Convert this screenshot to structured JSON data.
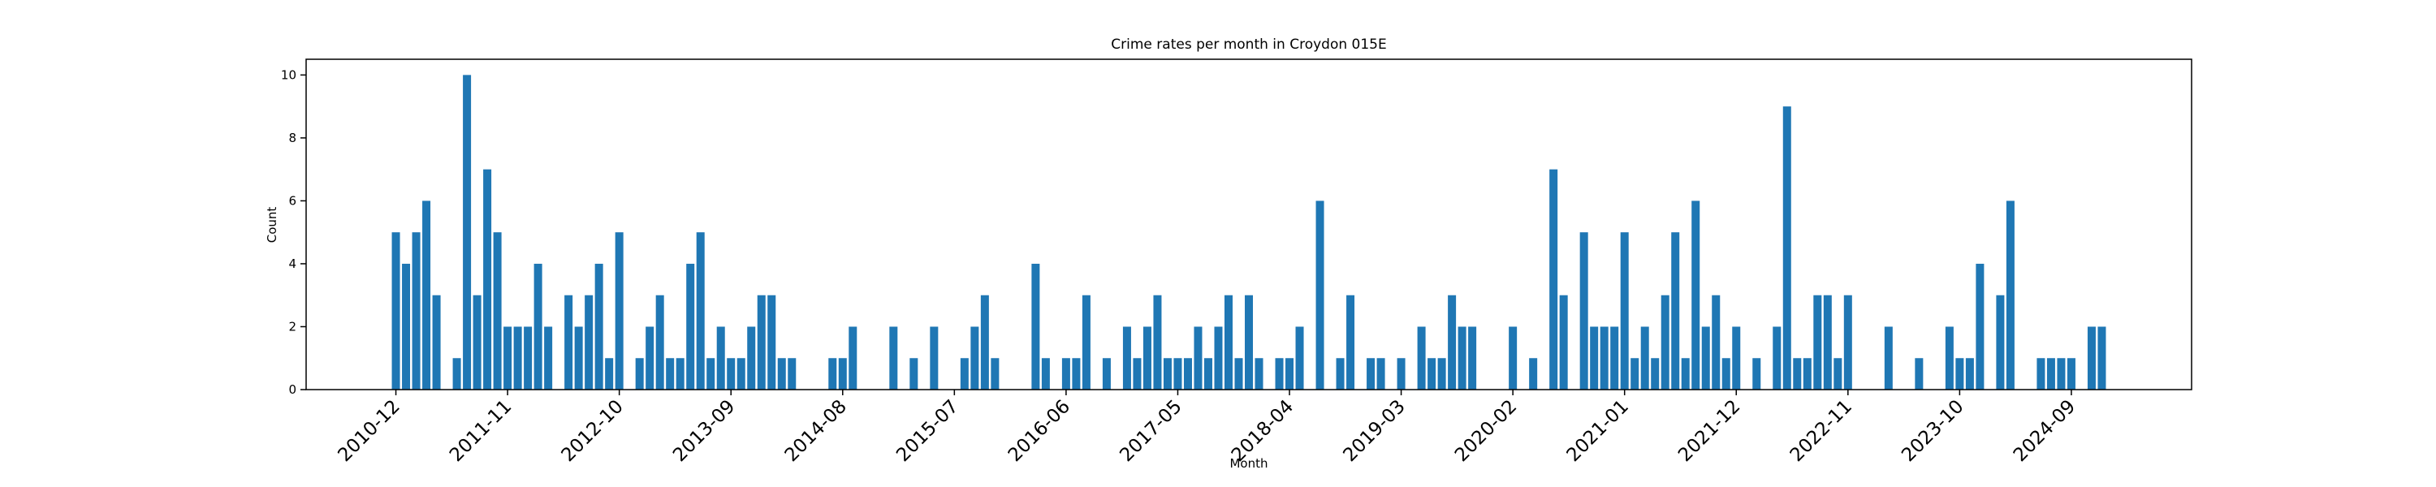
{
  "chart_data": {
    "type": "bar",
    "title": "Crime rates per month in Croydon 015E",
    "xlabel": "Month",
    "ylabel": "Count",
    "color": "#1f77b4",
    "categories": [
      "2010-12",
      null,
      null,
      null,
      null,
      null,
      null,
      null,
      null,
      null,
      null,
      "2011-11",
      null,
      null,
      null,
      null,
      null,
      null,
      null,
      null,
      null,
      null,
      "2012-10",
      null,
      null,
      null,
      null,
      null,
      null,
      null,
      null,
      null,
      null,
      "2013-09",
      null,
      null,
      null,
      null,
      null,
      null,
      null,
      null,
      null,
      null,
      "2014-08",
      null,
      null,
      null,
      null,
      null,
      null,
      null,
      null,
      null,
      null,
      "2015-07",
      null,
      null,
      null,
      null,
      null,
      null,
      null,
      null,
      null,
      null,
      "2016-06",
      null,
      null,
      null,
      null,
      null,
      null,
      null,
      null,
      null,
      null,
      "2017-05",
      null,
      null,
      null,
      null,
      null,
      null,
      null,
      null,
      null,
      null,
      "2018-04",
      null,
      null,
      null,
      null,
      null,
      null,
      null,
      null,
      null,
      null,
      "2019-03",
      null,
      null,
      null,
      null,
      null,
      null,
      null,
      null,
      null,
      null,
      "2020-02",
      null,
      null,
      null,
      null,
      null,
      null,
      null,
      null,
      null,
      null,
      "2021-01",
      null,
      null,
      null,
      null,
      null,
      null,
      null,
      null,
      null,
      null,
      "2021-12",
      null,
      null,
      null,
      null,
      null,
      null,
      null,
      null,
      null,
      null,
      "2022-11",
      null,
      null,
      null,
      null,
      null,
      null,
      null,
      null,
      null,
      null,
      "2023-10",
      null,
      null,
      null,
      null,
      null,
      null,
      null,
      null,
      null,
      null,
      "2024-09",
      null,
      null,
      null
    ],
    "values": [
      5,
      4,
      5,
      6,
      3,
      0,
      1,
      10,
      3,
      7,
      5,
      2,
      2,
      2,
      4,
      2,
      0,
      3,
      2,
      3,
      4,
      1,
      5,
      0,
      1,
      2,
      3,
      1,
      1,
      4,
      5,
      1,
      2,
      1,
      1,
      2,
      3,
      3,
      1,
      1,
      0,
      0,
      0,
      1,
      1,
      2,
      0,
      0,
      0,
      2,
      0,
      1,
      0,
      2,
      0,
      0,
      1,
      2,
      3,
      1,
      0,
      0,
      0,
      4,
      1,
      0,
      1,
      1,
      3,
      0,
      1,
      0,
      2,
      1,
      2,
      3,
      1,
      1,
      1,
      2,
      1,
      2,
      3,
      1,
      3,
      1,
      0,
      1,
      1,
      2,
      0,
      6,
      0,
      1,
      3,
      0,
      1,
      1,
      0,
      1,
      0,
      2,
      1,
      1,
      3,
      2,
      2,
      0,
      0,
      0,
      2,
      0,
      1,
      0,
      7,
      3,
      0,
      5,
      2,
      2,
      2,
      5,
      1,
      2,
      1,
      3,
      5,
      1,
      6,
      2,
      3,
      1,
      2,
      0,
      1,
      0,
      2,
      9,
      1,
      1,
      3,
      3,
      1,
      3,
      0,
      0,
      0,
      2,
      0,
      0,
      1,
      0,
      0,
      2,
      1,
      1,
      4,
      0,
      3,
      6,
      0,
      0,
      1,
      1,
      1,
      1,
      0,
      2,
      2
    ],
    "ylim": [
      0,
      10.5
    ],
    "yticks": [
      0,
      2,
      4,
      6,
      8,
      10
    ]
  }
}
